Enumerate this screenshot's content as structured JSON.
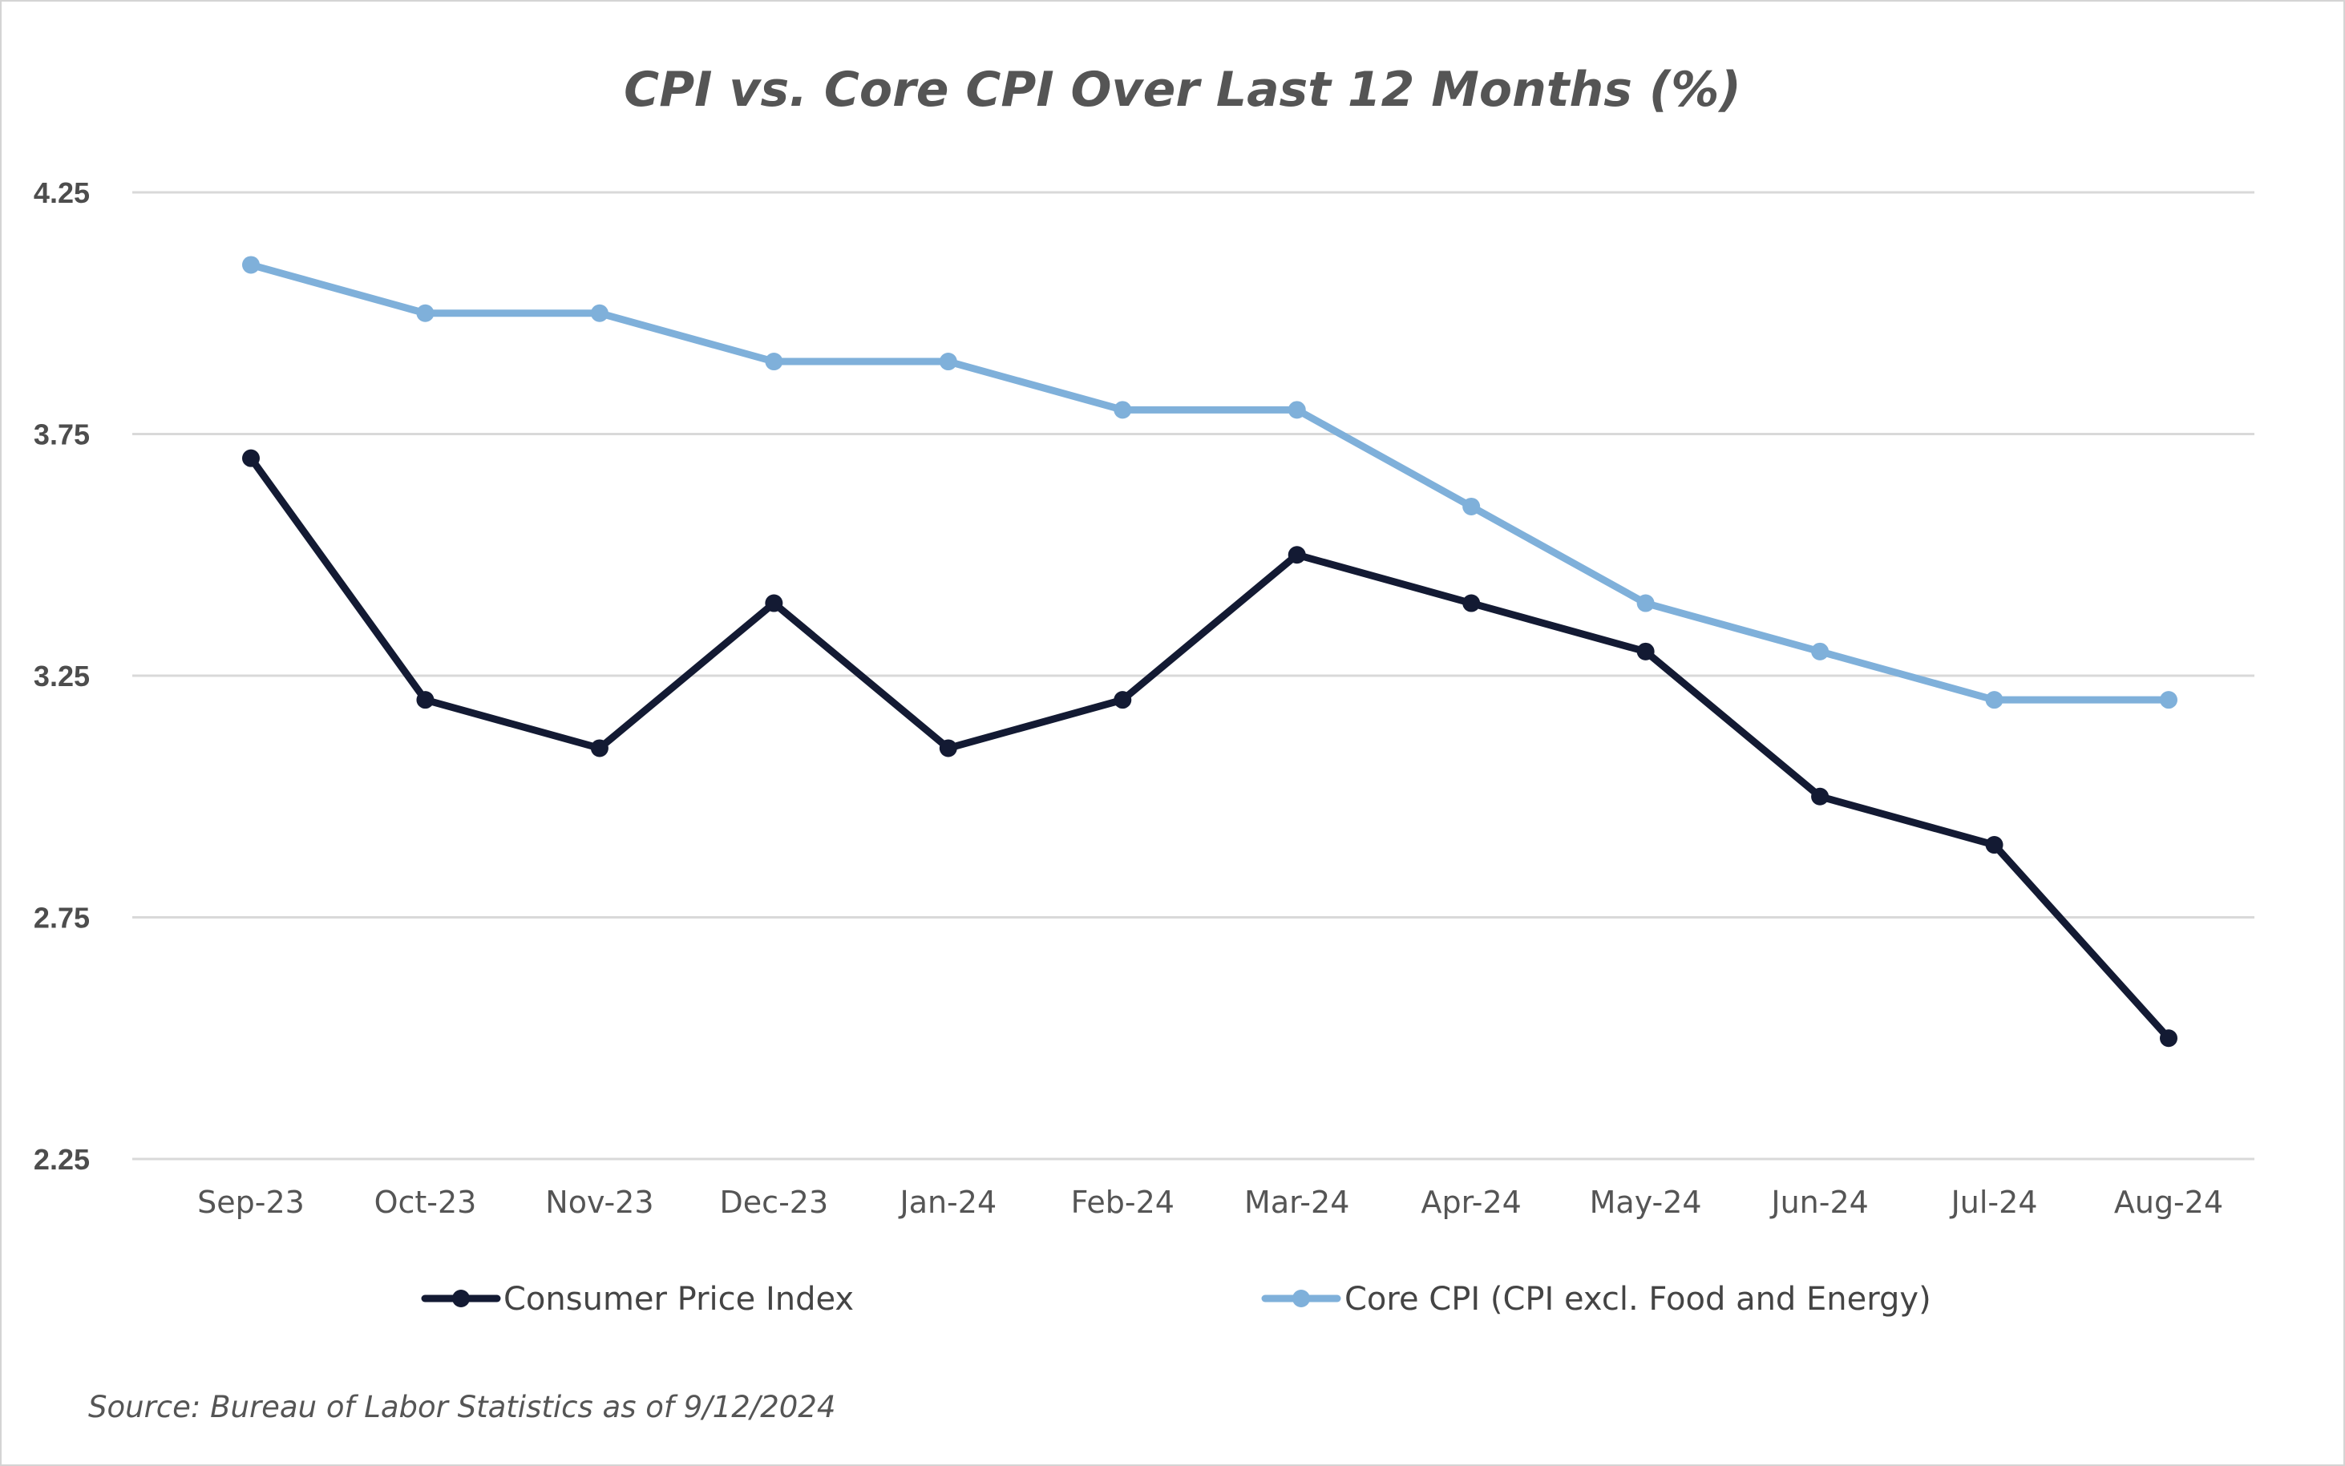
{
  "chart_data": {
    "type": "line",
    "title": "CPI vs. Core CPI Over Last 12 Months (%)",
    "xlabel": "",
    "ylabel": "",
    "categories": [
      "Sep-23",
      "Oct-23",
      "Nov-23",
      "Dec-23",
      "Jan-24",
      "Feb-24",
      "Mar-24",
      "Apr-24",
      "May-24",
      "Jun-24",
      "Jul-24",
      "Aug-24"
    ],
    "ylim": [
      2.25,
      4.25
    ],
    "yticks": [
      "4.25",
      "3.75",
      "3.25",
      "2.75",
      "2.25"
    ],
    "ytick_values": [
      4.25,
      3.75,
      3.25,
      2.75,
      2.25
    ],
    "grid": true,
    "legend_position": "bottom",
    "series": [
      {
        "name": "Consumer Price Index",
        "color": "#131a33",
        "values": [
          3.7,
          3.2,
          3.1,
          3.4,
          3.1,
          3.2,
          3.5,
          3.4,
          3.3,
          3.0,
          2.9,
          2.5
        ]
      },
      {
        "name": "Core CPI (CPI excl. Food and Energy)",
        "color": "#7fb0da",
        "values": [
          4.1,
          4.0,
          4.0,
          3.9,
          3.9,
          3.8,
          3.8,
          3.6,
          3.4,
          3.3,
          3.2,
          3.2
        ]
      }
    ]
  },
  "source": "Source: Bureau of Labor Statistics as of 9/12/2024"
}
